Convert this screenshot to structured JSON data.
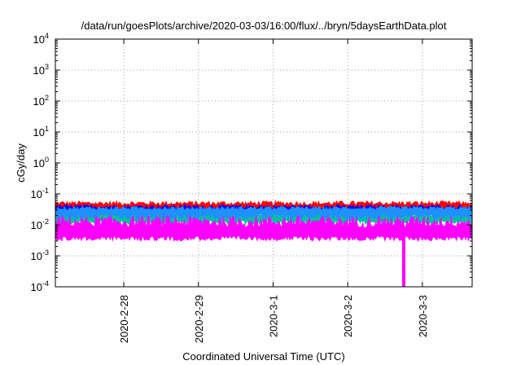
{
  "chart_data": {
    "type": "area",
    "title": "/data/run/goesPlots/archive/2020-03-03/16:00/flux/../bryn/5daysEarthData.plot",
    "xlabel": "Coordinated Universal Time (UTC)",
    "ylabel": "cGy/day",
    "yscale": "log",
    "ylim": [
      0.0001,
      10000
    ],
    "y_ticks": [
      {
        "base": "10",
        "exp": "-4",
        "value": 0.0001
      },
      {
        "base": "10",
        "exp": "-3",
        "value": 0.001
      },
      {
        "base": "10",
        "exp": "-2",
        "value": 0.01
      },
      {
        "base": "10",
        "exp": "-1",
        "value": 0.1
      },
      {
        "base": "10",
        "exp": "0",
        "value": 1
      },
      {
        "base": "10",
        "exp": "1",
        "value": 10
      },
      {
        "base": "10",
        "exp": "2",
        "value": 100
      },
      {
        "base": "10",
        "exp": "3",
        "value": 1000
      },
      {
        "base": "10",
        "exp": "4",
        "value": 10000
      }
    ],
    "xlim": [
      "2020-02-27 02:00",
      "2020-03-03 16:00"
    ],
    "x_ticks": [
      "2020-2-28",
      "2020-2-29",
      "2020-3-1",
      "2020-3-2",
      "2020-3-3"
    ],
    "grid": true,
    "series": [
      {
        "color": "#ff0000",
        "range": [
          0.025,
          0.06
        ],
        "mean": 0.035
      },
      {
        "color": "#0000ff",
        "range": [
          0.02,
          0.045
        ],
        "mean": 0.028
      },
      {
        "color": "#00c0a0",
        "range": [
          0.01,
          0.025
        ],
        "mean": 0.016
      },
      {
        "color": "#1e90ff",
        "range": [
          0.015,
          0.04
        ],
        "mean": 0.026
      },
      {
        "color": "#ff00ff",
        "range": [
          0.003,
          0.02
        ],
        "mean": 0.005
      }
    ],
    "events": [
      {
        "x": "2020-03-02 18:00",
        "series_color": "#ff00ff",
        "min_value": 0.0001
      }
    ]
  }
}
